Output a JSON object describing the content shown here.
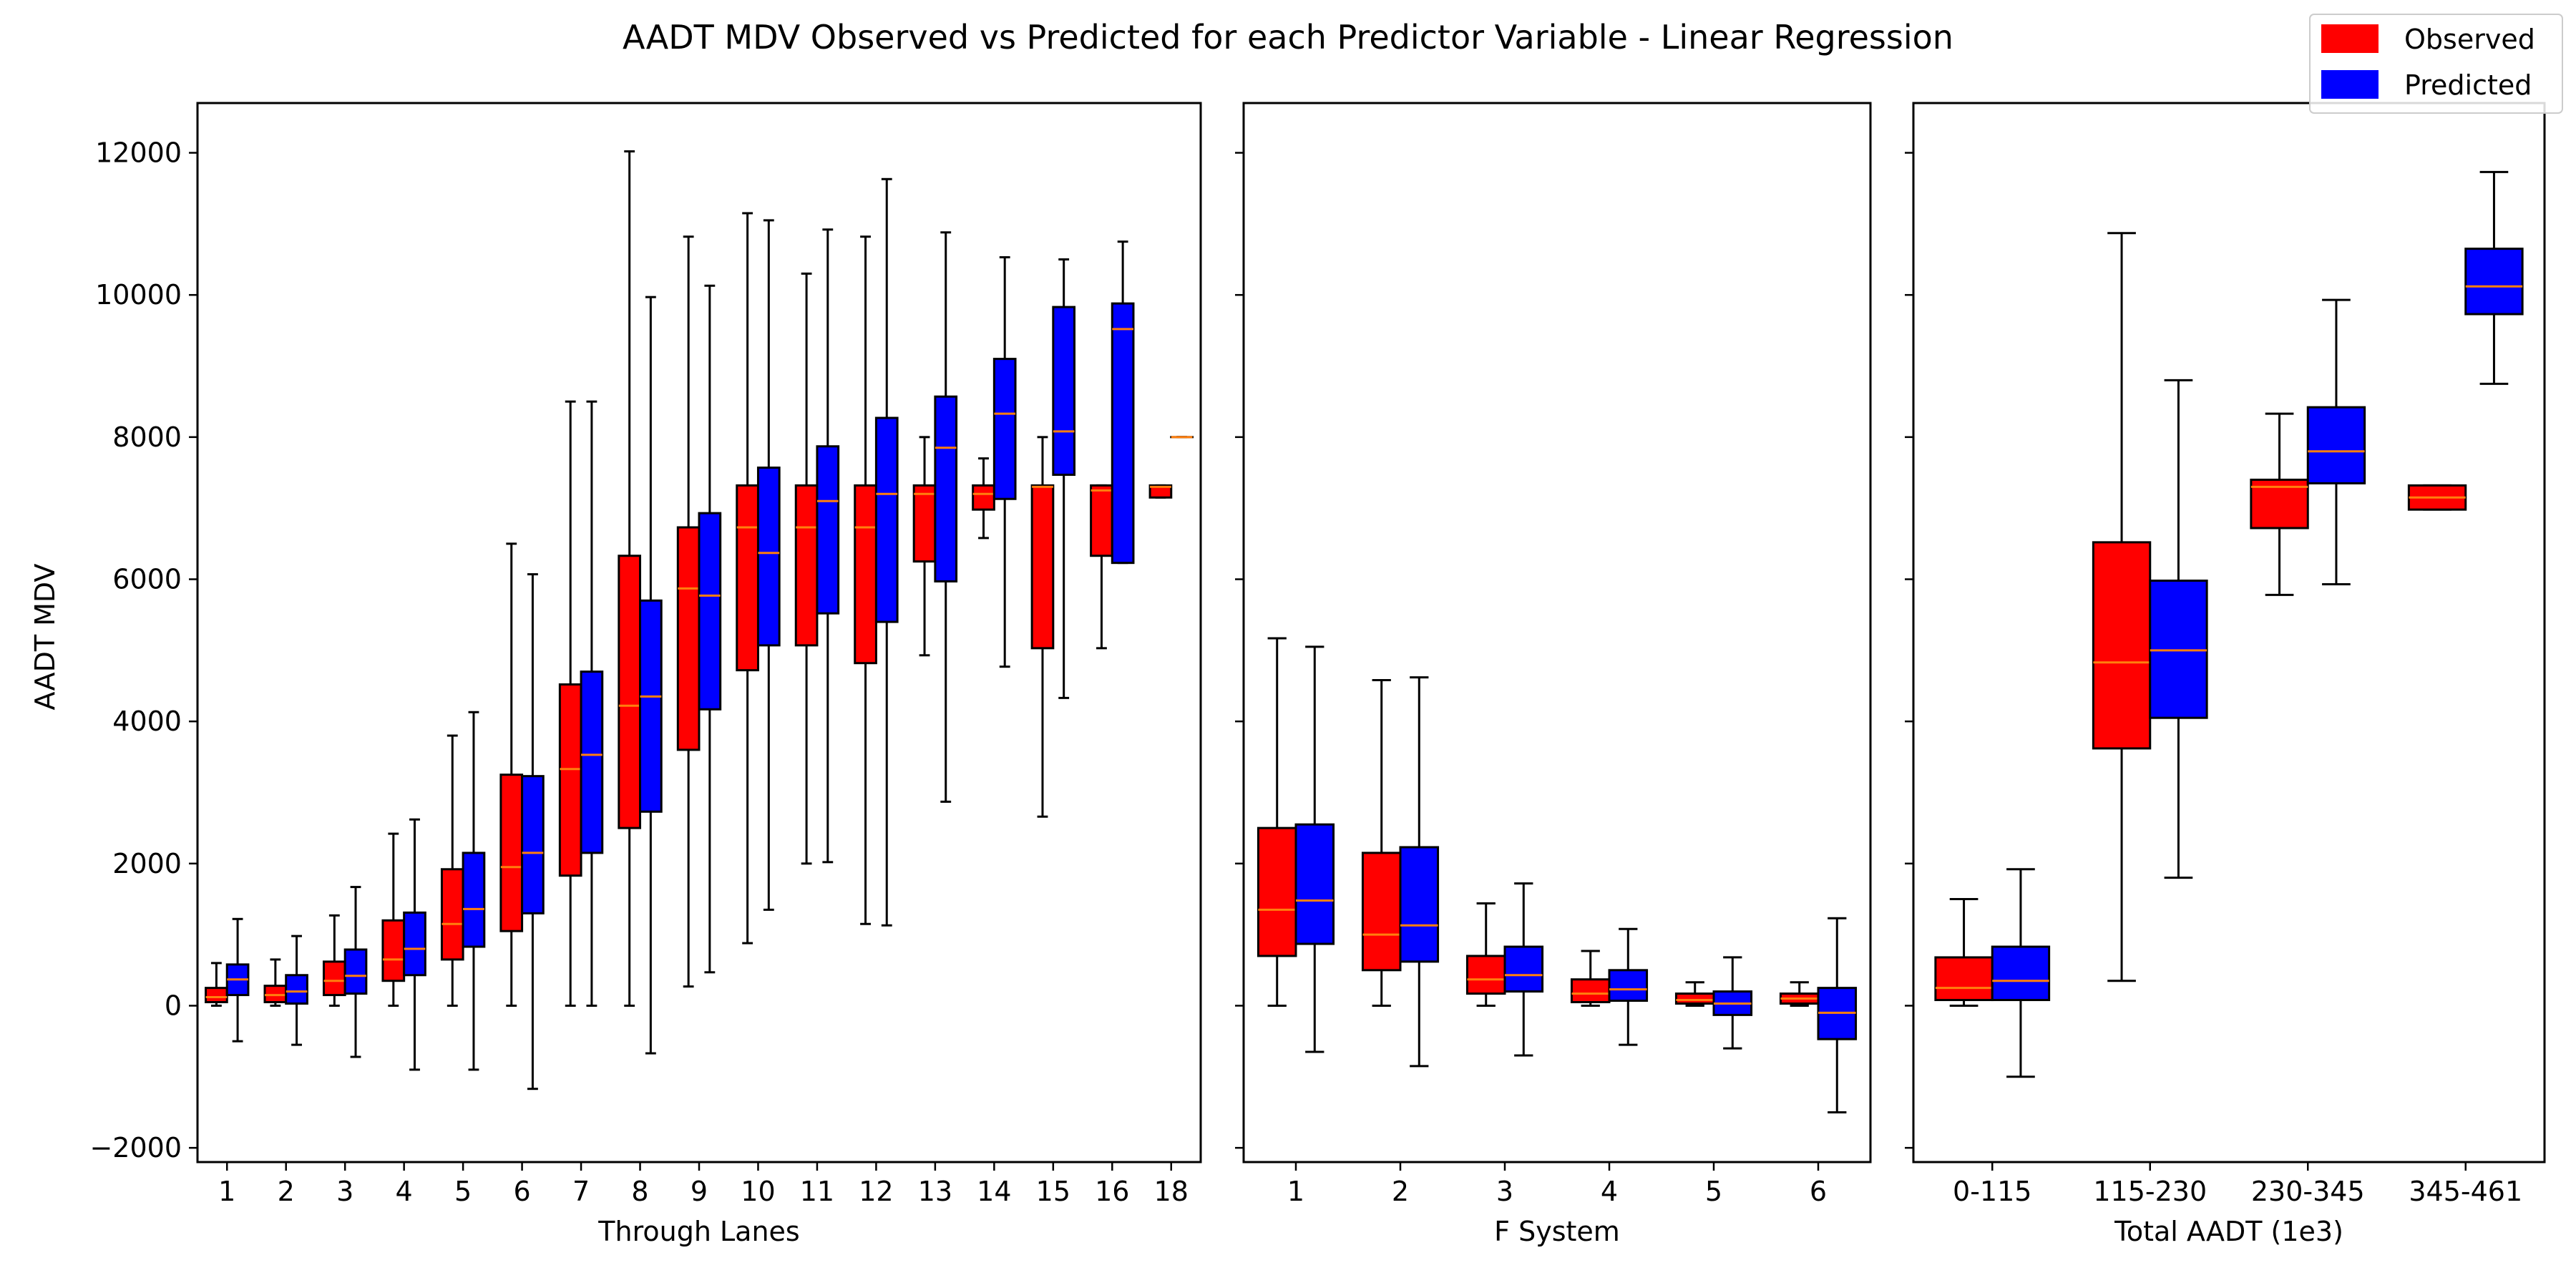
{
  "figure": {
    "title": "AADT MDV Observed vs Predicted for each Predictor Variable - Linear Regression",
    "ylabel": "AADT MDV",
    "legend": {
      "placement": "top-right",
      "items": [
        {
          "label": "Observed",
          "color": "#ff0000"
        },
        {
          "label": "Predicted",
          "color": "#0000ff"
        }
      ]
    },
    "colors": {
      "observed": "#ff0000",
      "predicted": "#0000ff",
      "median": "#ff7f0e",
      "edge": "#000000"
    }
  },
  "chart_data": [
    {
      "type": "box",
      "xlabel": "Through Lanes",
      "ylabel": "AADT MDV",
      "ylim": [
        -2200,
        12700
      ],
      "yticks": [
        -2000,
        0,
        2000,
        4000,
        6000,
        8000,
        10000,
        12000
      ],
      "categories": [
        "1",
        "2",
        "3",
        "4",
        "5",
        "6",
        "7",
        "8",
        "9",
        "10",
        "11",
        "12",
        "13",
        "14",
        "15",
        "16",
        "18"
      ],
      "series": [
        {
          "name": "Observed",
          "boxes": [
            {
              "min": 0,
              "q1": 50,
              "median": 120,
              "q3": 250,
              "max": 600
            },
            {
              "min": 0,
              "q1": 50,
              "median": 150,
              "q3": 280,
              "max": 650
            },
            {
              "min": 0,
              "q1": 150,
              "median": 350,
              "q3": 620,
              "max": 1270
            },
            {
              "min": 0,
              "q1": 350,
              "median": 650,
              "q3": 1200,
              "max": 2420
            },
            {
              "min": 0,
              "q1": 650,
              "median": 1150,
              "q3": 1920,
              "max": 3800
            },
            {
              "min": 0,
              "q1": 1050,
              "median": 1950,
              "q3": 3250,
              "max": 6500
            },
            {
              "min": 0,
              "q1": 1830,
              "median": 3330,
              "q3": 4520,
              "max": 8500
            },
            {
              "min": 0,
              "q1": 2500,
              "median": 4220,
              "q3": 6330,
              "max": 12020
            },
            {
              "min": 270,
              "q1": 3600,
              "median": 5870,
              "q3": 6730,
              "max": 10820
            },
            {
              "min": 880,
              "q1": 4720,
              "median": 6730,
              "q3": 7320,
              "max": 11150
            },
            {
              "min": 2000,
              "q1": 5070,
              "median": 6730,
              "q3": 7320,
              "max": 10300
            },
            {
              "min": 1150,
              "q1": 4820,
              "median": 6730,
              "q3": 7320,
              "max": 10820
            },
            {
              "min": 4930,
              "q1": 6250,
              "median": 7200,
              "q3": 7320,
              "max": 8000
            },
            {
              "min": 6580,
              "q1": 6980,
              "median": 7200,
              "q3": 7320,
              "max": 7700
            },
            {
              "min": 2660,
              "q1": 5030,
              "median": 7300,
              "q3": 7320,
              "max": 8000
            },
            {
              "min": 5030,
              "q1": 6330,
              "median": 7250,
              "q3": 7320,
              "max": 7320
            },
            {
              "min": 7150,
              "q1": 7150,
              "median": 7300,
              "q3": 7320,
              "max": 7320
            }
          ]
        },
        {
          "name": "Predicted",
          "boxes": [
            {
              "min": -500,
              "q1": 150,
              "median": 370,
              "q3": 580,
              "max": 1220
            },
            {
              "min": -550,
              "q1": 30,
              "median": 200,
              "q3": 430,
              "max": 980
            },
            {
              "min": -720,
              "q1": 170,
              "median": 420,
              "q3": 790,
              "max": 1670
            },
            {
              "min": -900,
              "q1": 430,
              "median": 800,
              "q3": 1310,
              "max": 2620
            },
            {
              "min": -900,
              "q1": 830,
              "median": 1360,
              "q3": 2150,
              "max": 4130
            },
            {
              "min": -1170,
              "q1": 1300,
              "median": 2150,
              "q3": 3230,
              "max": 6070
            },
            {
              "min": 0,
              "q1": 2150,
              "median": 3530,
              "q3": 4700,
              "max": 8500
            },
            {
              "min": -670,
              "q1": 2730,
              "median": 4350,
              "q3": 5700,
              "max": 9970
            },
            {
              "min": 470,
              "q1": 4170,
              "median": 5770,
              "q3": 6930,
              "max": 10130
            },
            {
              "min": 1350,
              "q1": 5070,
              "median": 6370,
              "q3": 7570,
              "max": 11050
            },
            {
              "min": 2020,
              "q1": 5520,
              "median": 7100,
              "q3": 7870,
              "max": 10920
            },
            {
              "min": 1130,
              "q1": 5400,
              "median": 7200,
              "q3": 8270,
              "max": 11630
            },
            {
              "min": 2870,
              "q1": 5970,
              "median": 7850,
              "q3": 8570,
              "max": 10880
            },
            {
              "min": 4770,
              "q1": 7130,
              "median": 8330,
              "q3": 9100,
              "max": 10530
            },
            {
              "min": 4330,
              "q1": 7470,
              "median": 8080,
              "q3": 9830,
              "max": 10500
            },
            {
              "min": 6230,
              "q1": 6230,
              "median": 9520,
              "q3": 9880,
              "max": 10750
            },
            {
              "min": 8000,
              "q1": 8000,
              "median": 8000,
              "q3": 8000,
              "max": 8000
            }
          ]
        }
      ]
    },
    {
      "type": "box",
      "xlabel": "F System",
      "ylim": [
        -2200,
        12700
      ],
      "categories": [
        "1",
        "2",
        "3",
        "4",
        "5",
        "6"
      ],
      "series": [
        {
          "name": "Observed",
          "boxes": [
            {
              "min": 0,
              "q1": 700,
              "median": 1350,
              "q3": 2500,
              "max": 5170
            },
            {
              "min": 0,
              "q1": 500,
              "median": 1000,
              "q3": 2150,
              "max": 4580
            },
            {
              "min": 0,
              "q1": 170,
              "median": 370,
              "q3": 700,
              "max": 1440
            },
            {
              "min": 0,
              "q1": 50,
              "median": 170,
              "q3": 370,
              "max": 770
            },
            {
              "min": 0,
              "q1": 30,
              "median": 80,
              "q3": 170,
              "max": 330
            },
            {
              "min": 0,
              "q1": 30,
              "median": 100,
              "q3": 170,
              "max": 330
            }
          ]
        },
        {
          "name": "Predicted",
          "boxes": [
            {
              "min": -650,
              "q1": 870,
              "median": 1480,
              "q3": 2550,
              "max": 5050
            },
            {
              "min": -850,
              "q1": 620,
              "median": 1130,
              "q3": 2230,
              "max": 4620
            },
            {
              "min": -700,
              "q1": 200,
              "median": 430,
              "q3": 830,
              "max": 1720
            },
            {
              "min": -550,
              "q1": 70,
              "median": 230,
              "q3": 500,
              "max": 1080
            },
            {
              "min": -600,
              "q1": -130,
              "median": 30,
              "q3": 200,
              "max": 680
            },
            {
              "min": -1500,
              "q1": -470,
              "median": -100,
              "q3": 250,
              "max": 1230
            }
          ]
        }
      ]
    },
    {
      "type": "box",
      "xlabel": "Total AADT (1e3)",
      "ylim": [
        -2200,
        12700
      ],
      "categories": [
        "0-115",
        "115-230",
        "230-345",
        "345-461"
      ],
      "series": [
        {
          "name": "Observed",
          "boxes": [
            {
              "min": 0,
              "q1": 80,
              "median": 250,
              "q3": 680,
              "max": 1500
            },
            {
              "min": 350,
              "q1": 3620,
              "median": 4830,
              "q3": 6520,
              "max": 10870
            },
            {
              "min": 5780,
              "q1": 6720,
              "median": 7300,
              "q3": 7400,
              "max": 8330
            },
            {
              "min": 6980,
              "q1": 6980,
              "median": 7150,
              "q3": 7320,
              "max": 7320
            }
          ]
        },
        {
          "name": "Predicted",
          "boxes": [
            {
              "min": -1000,
              "q1": 80,
              "median": 350,
              "q3": 830,
              "max": 1920
            },
            {
              "min": 1800,
              "q1": 4050,
              "median": 5000,
              "q3": 5980,
              "max": 8800
            },
            {
              "min": 5930,
              "q1": 7350,
              "median": 7800,
              "q3": 8420,
              "max": 9930
            },
            {
              "min": 8750,
              "q1": 9730,
              "median": 10120,
              "q3": 10650,
              "max": 11730
            }
          ]
        }
      ]
    }
  ]
}
